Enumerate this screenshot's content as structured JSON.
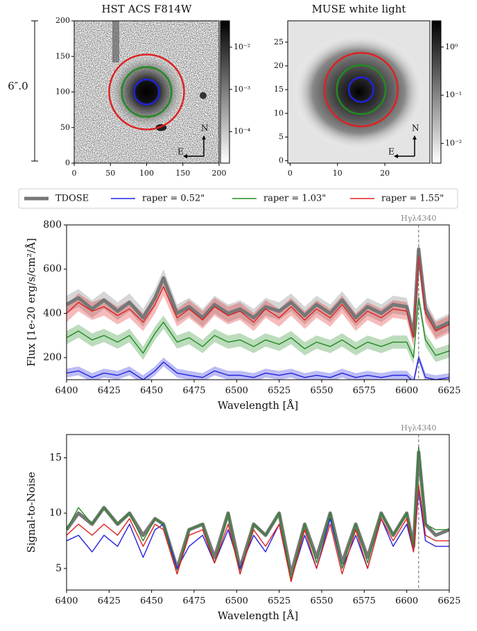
{
  "scale_label": "6″.0",
  "chart_data": [
    {
      "type": "image",
      "title": "HST ACS F814W",
      "xlim": [
        0,
        200
      ],
      "ylim": [
        0,
        200
      ],
      "xticks": [
        0,
        50,
        100,
        150,
        200
      ],
      "yticks": [
        0,
        50,
        100,
        150,
        200
      ],
      "colorbar": {
        "log": true,
        "lim": [
          1.8e-05,
          0.042
        ],
        "ticks": [
          {
            "value": 0.01,
            "label": "10⁻²"
          },
          {
            "value": 0.001,
            "label": "10⁻³"
          },
          {
            "value": 0.0001,
            "label": "10⁻⁴"
          }
        ]
      },
      "apertures": [
        {
          "x": 100,
          "y": 100,
          "r": 51.7,
          "color": "#e02020"
        },
        {
          "x": 100,
          "y": 100,
          "r": 34.3,
          "color": "#228b22"
        },
        {
          "x": 100,
          "y": 100,
          "r": 17.3,
          "color": "#2222dd"
        }
      ],
      "compass": [
        "N",
        "E"
      ]
    },
    {
      "type": "image",
      "title": "MUSE white light",
      "xlim": [
        -0.5,
        29.5
      ],
      "ylim": [
        -0.5,
        29.5
      ],
      "xticks": [
        0,
        10,
        20
      ],
      "yticks": [
        0,
        5,
        10,
        15,
        20,
        25
      ],
      "colorbar": {
        "log": true,
        "lim": [
          0.0039,
          3.5
        ],
        "ticks": [
          {
            "value": 1,
            "label": "10⁰"
          },
          {
            "value": 0.1,
            "label": "10⁻¹"
          },
          {
            "value": 0.01,
            "label": "10⁻²"
          }
        ]
      },
      "apertures": [
        {
          "x": 15,
          "y": 15,
          "r": 7.75,
          "color": "#e02020"
        },
        {
          "x": 15,
          "y": 15,
          "r": 5.15,
          "color": "#228b22"
        },
        {
          "x": 15,
          "y": 15,
          "r": 2.6,
          "color": "#2222dd"
        }
      ],
      "compass": [
        "N",
        "E"
      ]
    },
    {
      "type": "line",
      "xlabel": "Wavelength [Å]",
      "ylabel": "Flux [1e-20 erg/s/cm²/Å]",
      "annotation": {
        "text": "Hγλ4340",
        "x": 6607
      },
      "xlim": [
        6400,
        6625
      ],
      "ylim": [
        100,
        800
      ],
      "xticks": [
        6400,
        6425,
        6450,
        6475,
        6500,
        6525,
        6550,
        6575,
        6600,
        6625
      ],
      "yticks": [
        200,
        400,
        600,
        800
      ],
      "x": [
        6400,
        6407,
        6415,
        6422,
        6430,
        6437,
        6445,
        6452,
        6457,
        6465,
        6472,
        6480,
        6487,
        6495,
        6502,
        6510,
        6517,
        6525,
        6532,
        6540,
        6547,
        6555,
        6562,
        6570,
        6577,
        6585,
        6592,
        6600,
        6604,
        6607,
        6611,
        6617,
        6625
      ],
      "series": [
        {
          "name": "TDOSE",
          "color": "#777777",
          "error": 40,
          "values": [
            440,
            470,
            420,
            460,
            410,
            450,
            380,
            470,
            560,
            400,
            430,
            380,
            440,
            400,
            420,
            380,
            430,
            410,
            450,
            390,
            440,
            400,
            460,
            380,
            430,
            400,
            440,
            430,
            300,
            690,
            420,
            330,
            360
          ]
        },
        {
          "name": "raper = 0.52\"",
          "color": "#2222dd",
          "error": 20,
          "values": [
            130,
            140,
            110,
            130,
            120,
            140,
            100,
            140,
            180,
            130,
            120,
            110,
            140,
            120,
            120,
            110,
            130,
            120,
            130,
            110,
            120,
            110,
            130,
            110,
            120,
            110,
            120,
            120,
            90,
            200,
            110,
            100,
            110
          ]
        },
        {
          "name": "raper = 1.03\"",
          "color": "#228b22",
          "error": 30,
          "values": [
            290,
            320,
            280,
            300,
            270,
            300,
            220,
            310,
            360,
            270,
            290,
            250,
            300,
            270,
            280,
            250,
            280,
            260,
            290,
            240,
            270,
            250,
            280,
            240,
            270,
            250,
            270,
            270,
            200,
            470,
            280,
            210,
            230
          ]
        },
        {
          "name": "raper = 1.55\"",
          "color": "#e02020",
          "error": 40,
          "values": [
            400,
            450,
            410,
            430,
            390,
            420,
            360,
            440,
            520,
            380,
            420,
            370,
            430,
            390,
            410,
            360,
            420,
            380,
            430,
            370,
            420,
            380,
            440,
            360,
            410,
            380,
            420,
            410,
            290,
            660,
            400,
            320,
            350
          ]
        }
      ]
    },
    {
      "type": "line",
      "xlabel": "Wavelength [Å]",
      "ylabel": "Signal-to-Noise",
      "annotation": {
        "text": "Hγλ4340",
        "x": 6607
      },
      "xlim": [
        6400,
        6625
      ],
      "ylim": [
        3.05,
        17.1
      ],
      "xticks": [
        6400,
        6425,
        6450,
        6475,
        6500,
        6525,
        6550,
        6575,
        6600,
        6625
      ],
      "yticks": [
        5,
        10,
        15
      ],
      "x": [
        6400,
        6407,
        6415,
        6422,
        6430,
        6437,
        6445,
        6452,
        6457,
        6465,
        6472,
        6480,
        6487,
        6495,
        6502,
        6510,
        6517,
        6525,
        6532,
        6540,
        6547,
        6555,
        6562,
        6570,
        6577,
        6585,
        6592,
        6600,
        6604,
        6607,
        6611,
        6617,
        6625
      ],
      "series": [
        {
          "color": "#777777",
          "values": [
            8.5,
            10,
            9,
            10.5,
            9,
            10,
            8,
            9.5,
            9,
            5,
            8.5,
            9,
            6,
            10,
            5,
            9,
            8,
            10,
            4.5,
            9,
            6,
            10,
            5.5,
            9,
            6,
            10,
            8,
            10,
            7,
            15.5,
            9,
            8,
            8.5
          ]
        },
        {
          "color": "#2222dd",
          "values": [
            7.5,
            8,
            6.5,
            8,
            7,
            9,
            6,
            8.5,
            9,
            5,
            7,
            8,
            5.5,
            8.5,
            5,
            8,
            6.5,
            9,
            4,
            8,
            5,
            9.5,
            5,
            8,
            5,
            9.5,
            7,
            9,
            6.5,
            12,
            7.5,
            7,
            7
          ]
        },
        {
          "color": "#228b22",
          "values": [
            8.5,
            10.5,
            9,
            10.5,
            9,
            10,
            7.5,
            9.5,
            9,
            4.5,
            8.5,
            9,
            5.5,
            10,
            4.5,
            9,
            8,
            10,
            4,
            9,
            5.5,
            10,
            5,
            9,
            5.5,
            10,
            8,
            10,
            7,
            16,
            9,
            8.5,
            8.5
          ]
        },
        {
          "color": "#e02020",
          "values": [
            8,
            9,
            8,
            9,
            8,
            9.5,
            7,
            9,
            8.5,
            4.5,
            8,
            8.5,
            5.5,
            9,
            4.5,
            8.5,
            7,
            9,
            3.8,
            8.5,
            5,
            9,
            4.5,
            8.5,
            5,
            9.5,
            7.5,
            9.5,
            6.5,
            12.5,
            8,
            7.5,
            7.5
          ]
        }
      ]
    }
  ]
}
